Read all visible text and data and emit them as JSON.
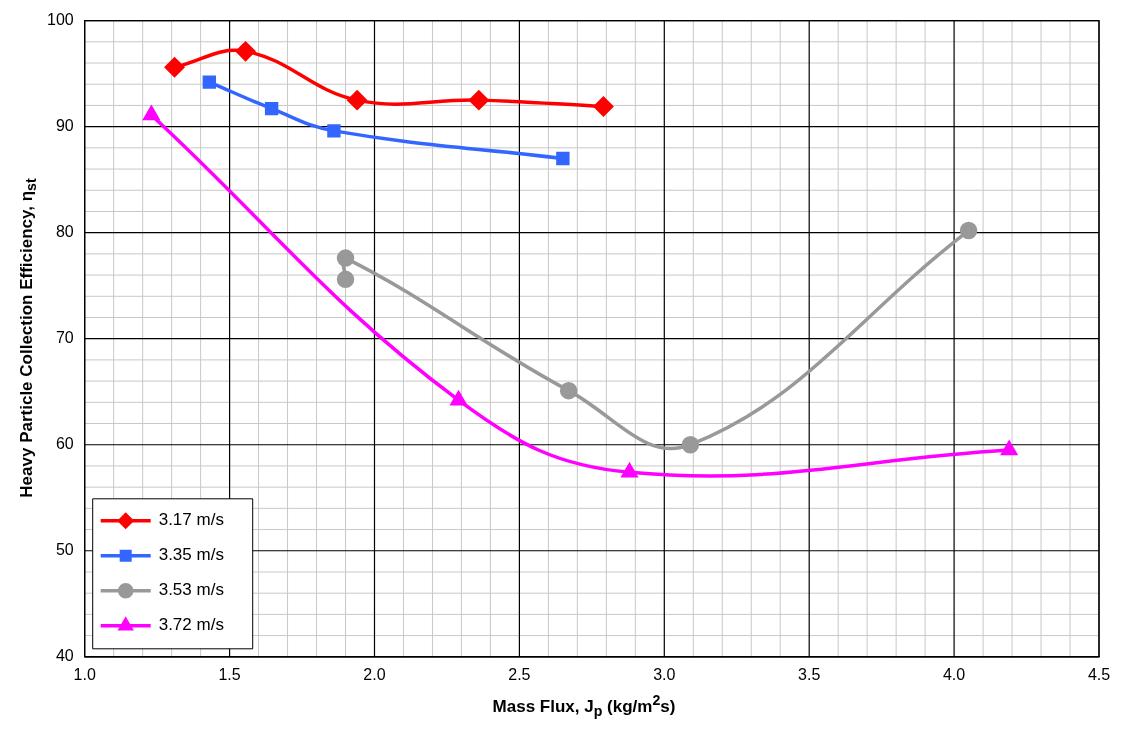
{
  "chart_data": {
    "type": "line",
    "xlabel": "Mass Flux, J$_{p}$ (kg/m$^{2}$s)",
    "ylabel": "Heavy Particle Collection Efficiency, η$_{st}$",
    "xlim": [
      1.0,
      4.5
    ],
    "xticks": [
      {
        "value": 1.0,
        "label": "1.0"
      },
      {
        "value": 1.5,
        "label": "1.5"
      },
      {
        "value": 2.0,
        "label": "2.0"
      },
      {
        "value": 2.5,
        "label": "2.5"
      },
      {
        "value": 3.0,
        "label": "3.0"
      },
      {
        "value": 3.5,
        "label": "3.5"
      },
      {
        "value": 4.0,
        "label": "4.0"
      },
      {
        "value": 4.5,
        "label": "4.5"
      }
    ],
    "ylim": [
      40,
      100
    ],
    "yticks": [
      40,
      50,
      60,
      70,
      80,
      90,
      100
    ],
    "grid": true,
    "legend": "bottom left",
    "series": [
      {
        "name": "3.17 m/s",
        "color": "#ff0000",
        "marker": "diamond",
        "x": [
          1.31,
          1.555,
          1.94,
          2.36,
          2.79
        ],
        "values": [
          95.6,
          97.1,
          92.5,
          92.5,
          91.9
        ]
      },
      {
        "name": "3.35 m/s",
        "color": "#3366ff",
        "marker": "square",
        "x": [
          1.43,
          1.645,
          1.86,
          2.65
        ],
        "values": [
          94.2,
          91.7,
          89.6,
          87.0
        ]
      },
      {
        "name": "3.53 m/s",
        "color": "#999999",
        "marker": "circle",
        "x": [
          1.9,
          1.9,
          2.67,
          3.09,
          4.05
        ],
        "values": [
          75.6,
          77.6,
          65.1,
          60.0,
          80.2
        ]
      },
      {
        "name": "3.72 m/s",
        "color": "#ff00ff",
        "marker": "triangle",
        "x": [
          1.23,
          2.29,
          2.88,
          4.19
        ],
        "values": [
          91.1,
          64.2,
          57.4,
          59.5
        ]
      }
    ]
  }
}
